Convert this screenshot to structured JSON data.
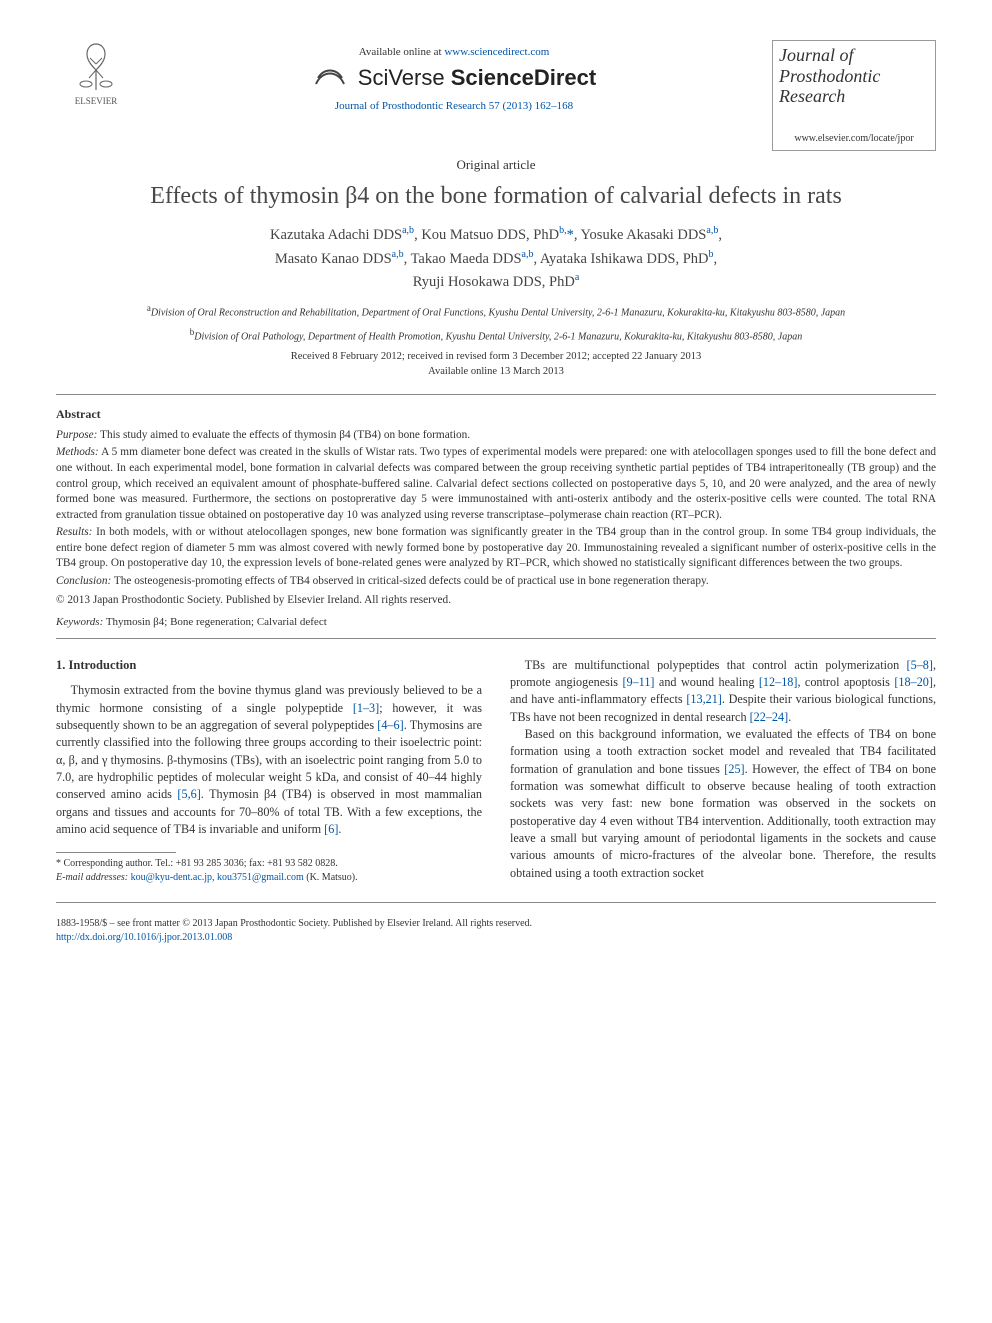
{
  "header": {
    "publisher_name": "ELSEVIER",
    "available_prefix": "Available online at ",
    "available_url": "www.sciencedirect.com",
    "platform_line1": "SciVerse ",
    "platform_line2": "ScienceDirect",
    "citation": "Journal of Prosthodontic Research 57 (2013) 162–168",
    "journal_name_l1": "Journal of",
    "journal_name_l2": "Prosthodontic",
    "journal_name_l3": "Research",
    "journal_url": "www.elsevier.com/locate/jpor"
  },
  "article": {
    "type": "Original article",
    "title": "Effects of thymosin β4 on the bone formation of calvarial defects in rats",
    "authors_html": "Kazutaka Adachi DDS<sup>a,b</sup>, Kou Matsuo DDS, PhD<sup>b,</sup><span class='star'>*</span>, Yosuke Akasaki DDS<sup>a,b</sup>,<br>Masato Kanao DDS<sup>a,b</sup>, Takao Maeda DDS<sup>a,b</sup>, Ayataka Ishikawa DDS, PhD<sup>b</sup>,<br>Ryuji Hosokawa DDS, PhD<sup>a</sup>",
    "affiliations": [
      "<sup>a</sup>Division of Oral Reconstruction and Rehabilitation, Department of Oral Functions, Kyushu Dental University, 2-6-1 Manazuru, Kokurakita-ku, Kitakyushu 803-8580, Japan",
      "<sup>b</sup>Division of Oral Pathology, Department of Health Promotion, Kyushu Dental University, 2-6-1 Manazuru, Kokurakita-ku, Kitakyushu 803-8580, Japan"
    ],
    "dates_l1": "Received 8 February 2012; received in revised form 3 December 2012; accepted 22 January 2013",
    "dates_l2": "Available online 13 March 2013"
  },
  "abstract": {
    "heading": "Abstract",
    "purpose": "<span class='label'>Purpose:</span> This study aimed to evaluate the effects of thymosin β4 (TB4) on bone formation.",
    "methods": "<span class='label'>Methods:</span> A 5 mm diameter bone defect was created in the skulls of Wistar rats. Two types of experimental models were prepared: one with atelocollagen sponges used to fill the bone defect and one without. In each experimental model, bone formation in calvarial defects was compared between the group receiving synthetic partial peptides of TB4 intraperitoneally (TB group) and the control group, which received an equivalent amount of phosphate-buffered saline. Calvarial defect sections collected on postoperative days 5, 10, and 20 were analyzed, and the area of newly formed bone was measured. Furthermore, the sections on postoprerative day 5 were immunostained with anti-osterix antibody and the osterix-positive cells were counted. The total RNA extracted from granulation tissue obtained on postoperative day 10 was analyzed using reverse transcriptase–polymerase chain reaction (RT–PCR).",
    "results": "<span class='label'>Results:</span> In both models, with or without atelocollagen sponges, new bone formation was significantly greater in the TB4 group than in the control group. In some TB4 group individuals, the entire bone defect region of diameter 5 mm was almost covered with newly formed bone by postoperative day 20. Immunostaining revealed a significant number of osterix-positive cells in the TB4 group. On postoperative day 10, the expression levels of bone-related genes were analyzed by RT–PCR, which showed no statistically significant differences between the two groups.",
    "conclusion": "<span class='label'>Conclusion:</span> The osteogenesis-promoting effects of TB4 observed in critical-sized defects could be of practical use in bone regeneration therapy.",
    "copyright": "© 2013 Japan Prosthodontic Society. Published by Elsevier Ireland. All rights reserved."
  },
  "keywords": {
    "label": "Keywords:",
    "text": " Thymosin β4; Bone regeneration; Calvarial defect"
  },
  "body": {
    "sec_heading": "1. Introduction",
    "col1_p1": "Thymosin extracted from the bovine thymus gland was previously believed to be a thymic hormone consisting of a single polypeptide <span class='cite'>[1–3]</span>; however, it was subsequently shown to be an aggregation of several polypeptides <span class='cite'>[4–6]</span>. Thymosins are currently classified into the following three groups according to their isoelectric point: α, β, and γ thymosins. β-thymosins (TBs), with an isoelectric point ranging from 5.0 to 7.0, are hydrophilic peptides of molecular weight 5 kDa, and consist of 40–44 highly conserved amino acids <span class='cite'>[5,6]</span>. Thymosin β4 (TB4) is observed in most mammalian organs and tissues and accounts for 70–80% of total TB. With a few exceptions, the amino acid sequence of TB4 is invariable and uniform <span class='cite'>[6]</span>.",
    "col2_p1": "TBs are multifunctional polypeptides that control actin polymerization <span class='cite'>[5–8]</span>, promote angiogenesis <span class='cite'>[9–11]</span> and wound healing <span class='cite'>[12–18]</span>, control apoptosis <span class='cite'>[18–20]</span>, and have anti-inflammatory effects <span class='cite'>[13,21]</span>. Despite their various biological functions, TBs have not been recognized in dental research <span class='cite'>[22–24]</span>.",
    "col2_p2": "Based on this background information, we evaluated the effects of TB4 on bone formation using a tooth extraction socket model and revealed that TB4 facilitated formation of granulation and bone tissues <span class='cite'>[25]</span>. However, the effect of TB4 on bone formation was somewhat difficult to observe because healing of tooth extraction sockets was very fast: new bone formation was observed in the sockets on postoperative day 4 even without TB4 intervention. Additionally, tooth extraction may leave a small but varying amount of periodontal ligaments in the sockets and cause various amounts of micro-fractures of the alveolar bone. Therefore, the results obtained using a tooth extraction socket"
  },
  "footnotes": {
    "corr": "* Corresponding author. Tel.: +81 93 285 3036; fax: +81 93 582 0828.",
    "email_label": "E-mail addresses: ",
    "email1": "kou@kyu-dent.ac.jp",
    "email_sep": ", ",
    "email2": "kou3751@gmail.com",
    "email_tail": " (K. Matsuo)."
  },
  "footer": {
    "issn": "1883-1958/$ – see front matter © 2013 Japan Prosthodontic Society. Published by Elsevier Ireland. All rights reserved.",
    "doi": "http://dx.doi.org/10.1016/j.jpor.2013.01.008"
  },
  "colors": {
    "link": "#0054a6",
    "text": "#333333",
    "rule": "#888888"
  }
}
